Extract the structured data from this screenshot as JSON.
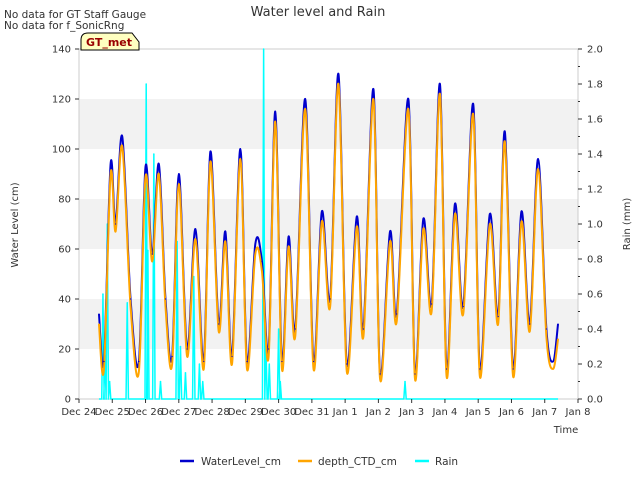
{
  "notes": [
    "No data for GT Staff Gauge",
    "No data for f_SonicRng"
  ],
  "badge": "GT_met",
  "chart_data": {
    "type": "line",
    "title": "Water level and Rain",
    "xlabel": "Time",
    "ylabel": "Water Level (cm)",
    "y2label": "Rain (mm)",
    "xlim": [
      0,
      15
    ],
    "ylim": [
      0,
      140
    ],
    "y2lim": [
      0,
      2.0
    ],
    "grid": "horizontal bands",
    "legend_position": "bottom-center",
    "x_tick_labels": [
      "Dec 24",
      "Dec 25",
      "Dec 26",
      "Dec 27",
      "Dec 28",
      "Dec 29",
      "Dec 30",
      "Dec 31",
      "Jan 1",
      "Jan 2",
      "Jan 3",
      "Jan 4",
      "Jan 5",
      "Jan 6",
      "Jan 7",
      "Jan 8"
    ],
    "y_ticks": [
      0,
      20,
      40,
      60,
      80,
      100,
      120,
      140
    ],
    "y2_ticks": [
      "0.0",
      "0.2",
      "0.4",
      "0.6",
      "0.8",
      "1.0",
      "1.2",
      "1.4",
      "1.6",
      "1.8",
      "2.0"
    ],
    "colors": {
      "water": "#0000cc",
      "depth": "#ffa500",
      "rain": "#00ffff"
    },
    "series": [
      {
        "name": "WaterLevel_cm",
        "axis": "left",
        "x": [
          0.6,
          0.75,
          0.95,
          1.1,
          1.3,
          1.55,
          1.8,
          2.0,
          2.2,
          2.4,
          2.6,
          2.8,
          3.0,
          3.25,
          3.5,
          3.75,
          3.95,
          4.2,
          4.4,
          4.6,
          4.85,
          5.05,
          5.3,
          5.5,
          5.7,
          5.9,
          6.1,
          6.3,
          6.5,
          6.8,
          7.05,
          7.3,
          7.55,
          7.8,
          8.05,
          8.35,
          8.55,
          8.85,
          9.05,
          9.35,
          9.55,
          9.9,
          10.1,
          10.35,
          10.6,
          10.85,
          11.05,
          11.3,
          11.55,
          11.85,
          12.05,
          12.35,
          12.6,
          12.8,
          13.05,
          13.3,
          13.55,
          13.8,
          14.05,
          14.25,
          14.4
        ],
        "values": [
          34,
          15,
          94,
          70,
          105,
          40,
          15,
          93,
          58,
          94,
          40,
          17,
          90,
          20,
          68,
          15,
          99,
          30,
          67,
          17,
          100,
          15,
          62,
          55,
          20,
          115,
          15,
          65,
          28,
          120,
          15,
          75,
          40,
          130,
          14,
          73,
          28,
          124,
          10,
          67,
          34,
          120,
          10,
          72,
          38,
          126,
          12,
          78,
          37,
          118,
          12,
          74,
          33,
          107,
          12,
          75,
          30,
          96,
          28,
          15,
          30
        ]
      },
      {
        "name": "depth_CTD_cm",
        "axis": "left",
        "x": [
          0.6,
          0.75,
          0.95,
          1.1,
          1.3,
          1.55,
          1.8,
          2.0,
          2.2,
          2.4,
          2.6,
          2.8,
          3.0,
          3.25,
          3.5,
          3.75,
          3.95,
          4.2,
          4.4,
          4.6,
          4.85,
          5.05,
          5.3,
          5.5,
          5.7,
          5.9,
          6.1,
          6.3,
          6.5,
          6.8,
          7.05,
          7.3,
          7.55,
          7.8,
          8.05,
          8.35,
          8.55,
          8.85,
          9.05,
          9.35,
          9.55,
          9.9,
          10.1,
          10.35,
          10.6,
          10.85,
          11.05,
          11.3,
          11.55,
          11.85,
          12.05,
          12.35,
          12.6,
          12.8,
          13.05,
          13.3,
          13.55,
          13.8,
          14.05,
          14.25,
          14.4
        ],
        "values": [
          30,
          12,
          90,
          67,
          101,
          37,
          11,
          89,
          55,
          90,
          37,
          14,
          86,
          17,
          64,
          12,
          95,
          27,
          63,
          14,
          96,
          12,
          58,
          51,
          17,
          111,
          12,
          61,
          25,
          116,
          12,
          71,
          37,
          126,
          11,
          69,
          25,
          120,
          8,
          63,
          31,
          116,
          8,
          68,
          35,
          122,
          9,
          74,
          34,
          114,
          9,
          70,
          30,
          103,
          9,
          71,
          27,
          92,
          25,
          12,
          24
        ]
      },
      {
        "name": "Rain",
        "axis": "right",
        "x": [
          0.72,
          0.78,
          0.85,
          0.92,
          1.45,
          2.02,
          2.07,
          2.25,
          2.45,
          2.95,
          3.05,
          3.2,
          3.45,
          3.62,
          3.72,
          5.55,
          5.62,
          5.72,
          6.0,
          6.05,
          9.8
        ],
        "values": [
          0.6,
          0.25,
          1.0,
          0.1,
          0.55,
          1.8,
          0.85,
          1.4,
          0.1,
          0.9,
          0.3,
          0.15,
          0.7,
          0.2,
          0.1,
          2.0,
          0.3,
          0.2,
          0.4,
          0.1,
          0.1
        ]
      }
    ]
  }
}
